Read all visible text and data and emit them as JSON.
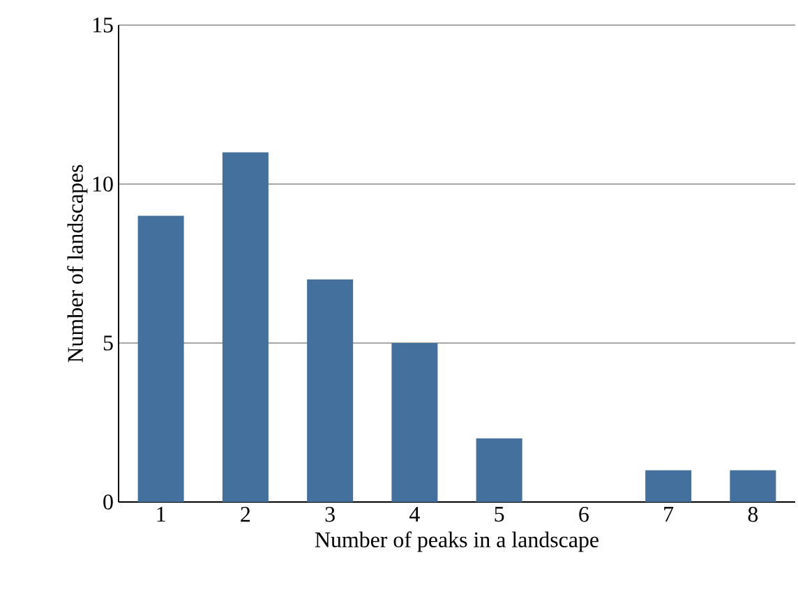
{
  "chart_data": {
    "type": "bar",
    "xlabel": "Number of peaks in a landscape",
    "ylabel": "Number of landscapes",
    "categories": [
      "1",
      "2",
      "3",
      "4",
      "5",
      "6",
      "7",
      "8"
    ],
    "values": [
      9,
      11,
      7,
      5,
      2,
      0,
      1,
      1
    ],
    "color": "#44709d",
    "ylim": [
      0,
      15
    ],
    "yticks": [
      0,
      5,
      10,
      15
    ],
    "grid": "y"
  }
}
